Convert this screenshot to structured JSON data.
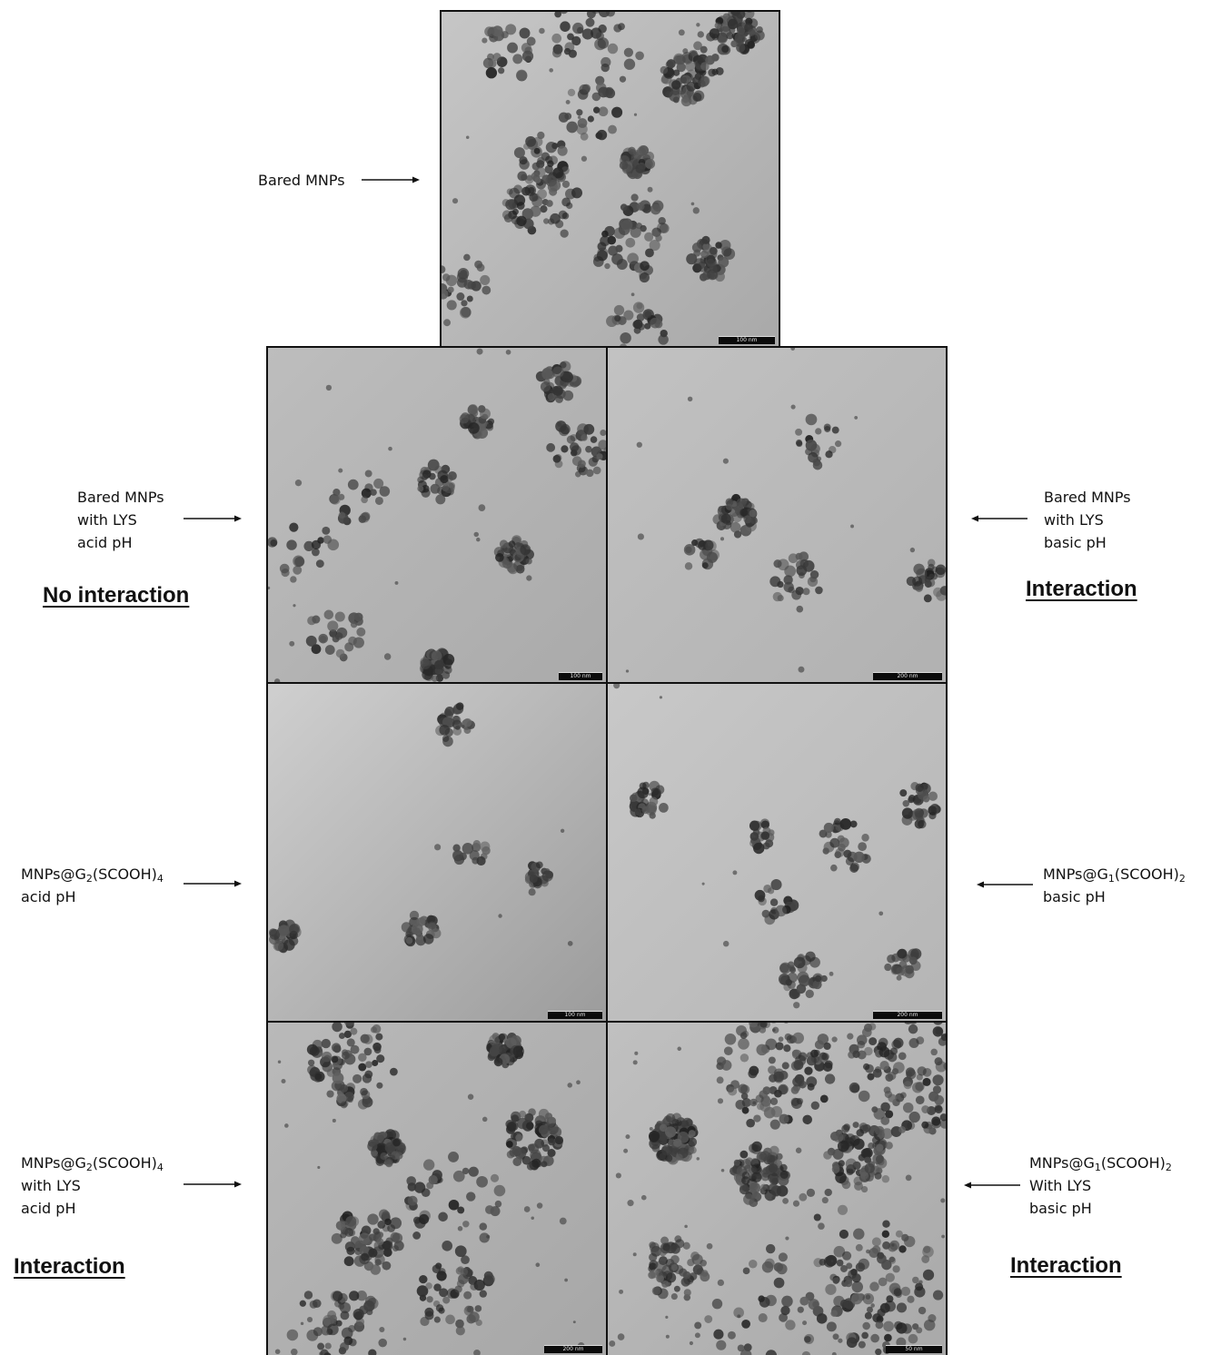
{
  "panels": [
    {
      "id": "top",
      "scale": "100 nm",
      "bg": [
        "#c6c6c6",
        "#a9a9a9"
      ],
      "density": 1.1
    },
    {
      "id": "r1l",
      "scale": "100 nm",
      "bg": [
        "#bdbdbd",
        "#aaaaaa"
      ],
      "density": 0.9
    },
    {
      "id": "r1r",
      "scale": "200 nm",
      "bg": [
        "#c2c2c2",
        "#b1b1b1"
      ],
      "density": 0.8
    },
    {
      "id": "r2l",
      "scale": "100 nm",
      "bg": [
        "#cfcfcf",
        "#9c9c9c"
      ],
      "density": 0.35
    },
    {
      "id": "r2r",
      "scale": "200 nm",
      "bg": [
        "#c8c8c8",
        "#b5b5b5"
      ],
      "density": 0.55
    },
    {
      "id": "r3l",
      "scale": "200 nm",
      "bg": [
        "#b9b9b9",
        "#a7a7a7"
      ],
      "density": 1.6
    },
    {
      "id": "r3r",
      "scale": "50 nm",
      "bg": [
        "#c0c0c0",
        "#a9a9a9"
      ],
      "density": 2.6
    }
  ],
  "labels": {
    "top": [
      "Bared MNPs"
    ],
    "r1_left": [
      "Bared MNPs",
      "with LYS",
      "acid pH"
    ],
    "r1_right": [
      "Bared MNPs",
      "with LYS",
      "basic pH"
    ],
    "r2_left_main": "MNPs@G",
    "r2_left_sub1": "2",
    "r2_left_mid": "(SCOOH)",
    "r2_left_sub2": "4",
    "r2_left_line2": "acid pH",
    "r2_right_main": "MNPs@G",
    "r2_right_sub1": "1",
    "r2_right_mid": "(SCOOH)",
    "r2_right_sub2": "2",
    "r2_right_line2": "basic pH",
    "r3_left_main": "MNPs@G",
    "r3_left_sub1": "2",
    "r3_left_mid": "(SCOOH)",
    "r3_left_sub2": "4",
    "r3_left_line2": "with LYS",
    "r3_left_line3": "acid pH",
    "r3_right_main": "MNPs@G",
    "r3_right_sub1": "1",
    "r3_right_mid": "(SCOOH)",
    "r3_right_sub2": "2",
    "r3_right_line2": "With LYS",
    "r3_right_line3": "basic pH"
  },
  "verdicts": {
    "r1_left": "No interaction",
    "r1_right": "Interaction",
    "r3_left": "Interaction",
    "r3_right": "Interaction"
  }
}
